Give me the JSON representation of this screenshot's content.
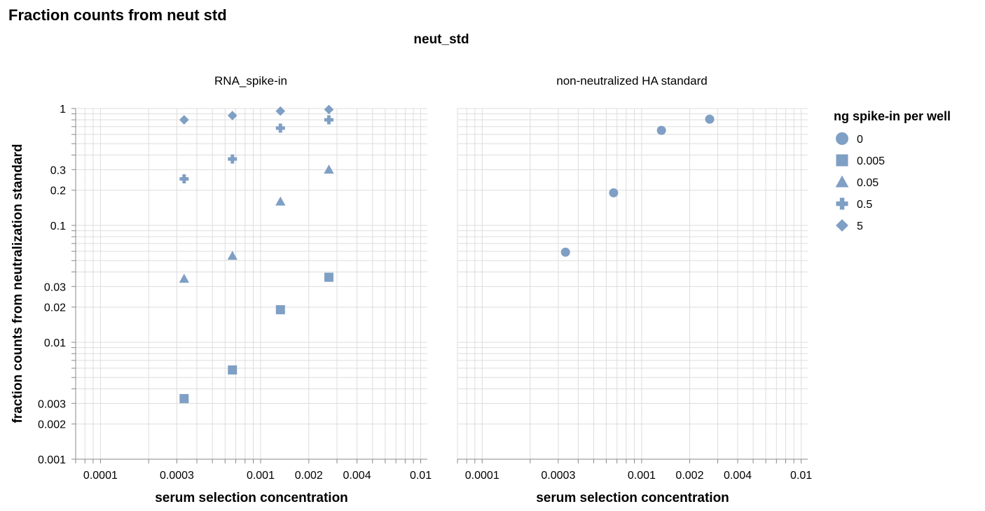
{
  "title": "Fraction counts from neut std",
  "facet_header": "neut_std",
  "legend": {
    "title": "ng spike-in per well",
    "items": [
      {
        "label": "0",
        "shape": "circle"
      },
      {
        "label": "0.005",
        "shape": "square"
      },
      {
        "label": "0.05",
        "shape": "triangle"
      },
      {
        "label": "0.5",
        "shape": "cross"
      },
      {
        "label": "5",
        "shape": "diamond"
      }
    ]
  },
  "colors": {
    "mark": "#7f9fc4",
    "grid": "#dddddd",
    "axis": "#888888"
  },
  "chart_data": {
    "type": "scatter",
    "x_scale": "log",
    "y_scale": "log",
    "xlabel": "serum selection concentration",
    "ylabel": "fraction counts from neutralization standard",
    "xlim": [
      7e-05,
      0.011
    ],
    "ylim": [
      0.001,
      1
    ],
    "x_ticks": [
      {
        "value": 0.0001,
        "label": "0.0001"
      },
      {
        "value": 0.0003,
        "label": "0.0003"
      },
      {
        "value": 0.001,
        "label": "0.001"
      },
      {
        "value": 0.002,
        "label": "0.002"
      },
      {
        "value": 0.004,
        "label": "0.004"
      },
      {
        "value": 0.01,
        "label": "0.01"
      }
    ],
    "y_ticks": [
      {
        "value": 1,
        "label": "1"
      },
      {
        "value": 0.3,
        "label": "0.3"
      },
      {
        "value": 0.2,
        "label": "0.2"
      },
      {
        "value": 0.1,
        "label": "0.1"
      },
      {
        "value": 0.03,
        "label": "0.03"
      },
      {
        "value": 0.02,
        "label": "0.02"
      },
      {
        "value": 0.01,
        "label": "0.01"
      },
      {
        "value": 0.003,
        "label": "0.003"
      },
      {
        "value": 0.002,
        "label": "0.002"
      },
      {
        "value": 0.001,
        "label": "0.001"
      }
    ],
    "facets": [
      {
        "title": "RNA_spike-in",
        "series": [
          {
            "name": "0.005",
            "shape": "square",
            "points": [
              {
                "x": 0.000333,
                "y": 0.0033
              },
              {
                "x": 0.000667,
                "y": 0.0058
              },
              {
                "x": 0.00133,
                "y": 0.019
              },
              {
                "x": 0.00267,
                "y": 0.036
              }
            ]
          },
          {
            "name": "0.05",
            "shape": "triangle",
            "points": [
              {
                "x": 0.000333,
                "y": 0.035
              },
              {
                "x": 0.000667,
                "y": 0.055
              },
              {
                "x": 0.00133,
                "y": 0.16
              },
              {
                "x": 0.00267,
                "y": 0.3
              }
            ]
          },
          {
            "name": "0.5",
            "shape": "cross",
            "points": [
              {
                "x": 0.000333,
                "y": 0.25
              },
              {
                "x": 0.000667,
                "y": 0.37
              },
              {
                "x": 0.00133,
                "y": 0.68
              },
              {
                "x": 0.00267,
                "y": 0.8
              }
            ]
          },
          {
            "name": "5",
            "shape": "diamond",
            "points": [
              {
                "x": 0.000333,
                "y": 0.8
              },
              {
                "x": 0.000667,
                "y": 0.87
              },
              {
                "x": 0.00133,
                "y": 0.95
              },
              {
                "x": 0.00267,
                "y": 0.98
              }
            ]
          }
        ]
      },
      {
        "title": "non-neutralized HA standard",
        "series": [
          {
            "name": "0",
            "shape": "circle",
            "points": [
              {
                "x": 0.000333,
                "y": 0.059
              },
              {
                "x": 0.000667,
                "y": 0.19
              },
              {
                "x": 0.00133,
                "y": 0.65
              },
              {
                "x": 0.00267,
                "y": 0.81
              }
            ]
          }
        ]
      }
    ]
  }
}
